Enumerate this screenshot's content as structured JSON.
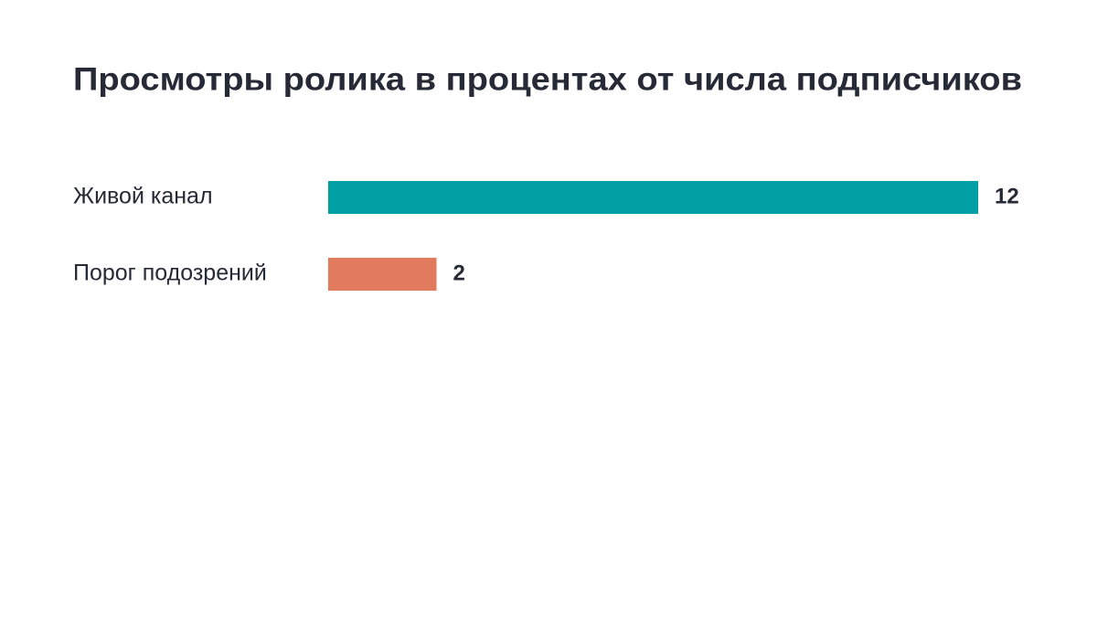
{
  "chart_data": {
    "type": "bar",
    "orientation": "horizontal",
    "title": "Просмотры ролика в процентах от числа подписчиков",
    "categories": [
      "Живой канал",
      "Порог подозрений"
    ],
    "values": [
      12,
      2
    ],
    "colors": [
      "#00a0a4",
      "#e27a5e"
    ]
  }
}
